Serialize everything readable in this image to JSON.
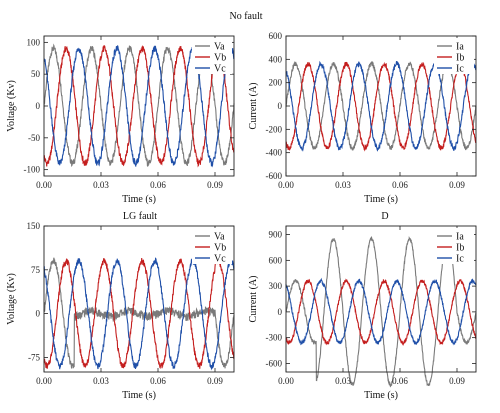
{
  "section_titles": [
    "No fault",
    "LG fault",
    "D"
  ],
  "chart_data": [
    {
      "type": "line",
      "xlabel": "Time (s)",
      "ylabel": "Voltage (Kv)",
      "xlim": [
        0,
        0.1
      ],
      "ylim": [
        -110,
        110
      ],
      "xticks": [
        "0.00",
        "0.03",
        "0.06",
        "0.09"
      ],
      "yticks": [
        100,
        50,
        0,
        -50,
        -100
      ],
      "legend_position": "top-right",
      "series": [
        {
          "name": "Va",
          "color": "#7a7a7a",
          "waveform": "sine",
          "frequency_hz": 50,
          "amplitude": 90,
          "phase_deg": 0
        },
        {
          "name": "Vb",
          "color": "#c41e1e",
          "waveform": "sine",
          "frequency_hz": 50,
          "amplitude": 90,
          "phase_deg": -120
        },
        {
          "name": "Vc",
          "color": "#1f4fa8",
          "waveform": "sine",
          "frequency_hz": 50,
          "amplitude": 90,
          "phase_deg": 120
        }
      ]
    },
    {
      "type": "line",
      "xlabel": "Time (s)",
      "ylabel": "Current (A)",
      "xlim": [
        0,
        0.1
      ],
      "ylim": [
        -600,
        600
      ],
      "xticks": [
        "0.00",
        "0.03",
        "0.06",
        "0.09"
      ],
      "yticks": [
        600,
        400,
        200,
        0,
        -200,
        -400,
        -600
      ],
      "legend_position": "top-right",
      "series": [
        {
          "name": "Ia",
          "color": "#7a7a7a",
          "waveform": "sine",
          "frequency_hz": 50,
          "amplitude": 360,
          "phase_deg": 0
        },
        {
          "name": "Ib",
          "color": "#c41e1e",
          "waveform": "sine",
          "frequency_hz": 50,
          "amplitude": 360,
          "phase_deg": -120
        },
        {
          "name": "Ic",
          "color": "#1f4fa8",
          "waveform": "sine",
          "frequency_hz": 50,
          "amplitude": 360,
          "phase_deg": 120
        }
      ]
    },
    {
      "type": "line",
      "xlabel": "Time (s)",
      "ylabel": "Voltage (Kv)",
      "xlim": [
        0,
        0.1
      ],
      "ylim": [
        -100,
        150
      ],
      "xticks": [
        "0.00",
        "0.03",
        "0.06",
        "0.09"
      ],
      "yticks": [
        150,
        75,
        0,
        -75
      ],
      "legend_position": "top-right",
      "series": [
        {
          "name": "Va",
          "color": "#7a7a7a",
          "waveform": "sine",
          "frequency_hz": 50,
          "amplitude": 90,
          "phase_deg": 0,
          "fault_start": 0.016,
          "fault_end": 0.09,
          "fault_amplitude": 5
        },
        {
          "name": "Vb",
          "color": "#c41e1e",
          "waveform": "sine",
          "frequency_hz": 50,
          "amplitude": 90,
          "phase_deg": -120
        },
        {
          "name": "Vc",
          "color": "#1f4fa8",
          "waveform": "sine",
          "frequency_hz": 50,
          "amplitude": 90,
          "phase_deg": 120
        }
      ]
    },
    {
      "type": "line",
      "xlabel": "Time (s)",
      "ylabel": "Current (A)",
      "xlim": [
        0,
        0.1
      ],
      "ylim": [
        -700,
        1000
      ],
      "xticks": [
        "0.00",
        "0.03",
        "0.06",
        "0.09"
      ],
      "yticks": [
        900,
        600,
        300,
        0,
        -300,
        -600
      ],
      "legend_position": "top-right",
      "series": [
        {
          "name": "Ia",
          "color": "#7a7a7a",
          "waveform": "sine",
          "frequency_hz": 50,
          "amplitude": 360,
          "phase_deg": 0,
          "fault_start": 0.016,
          "fault_end": 0.09,
          "fault_amplitude": 850
        },
        {
          "name": "Ib",
          "color": "#c41e1e",
          "waveform": "sine",
          "frequency_hz": 50,
          "amplitude": 360,
          "phase_deg": -120
        },
        {
          "name": "Ic",
          "color": "#1f4fa8",
          "waveform": "sine",
          "frequency_hz": 50,
          "amplitude": 360,
          "phase_deg": 120
        }
      ]
    }
  ]
}
